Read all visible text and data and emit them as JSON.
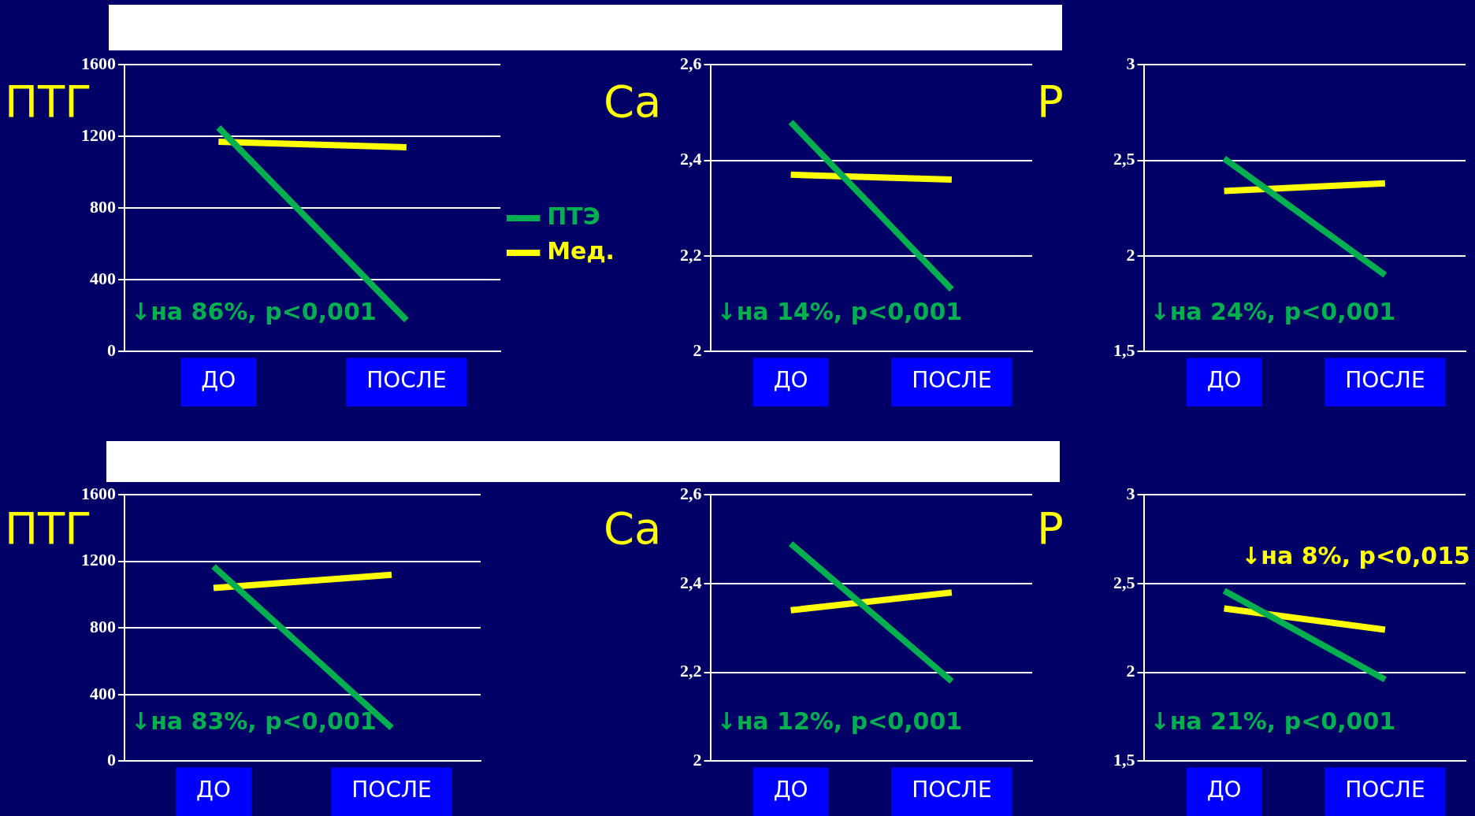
{
  "chart_data": [
    {
      "type": "line",
      "title": "ПТГ",
      "categories": [
        "ДО",
        "ПОСЛЕ"
      ],
      "series": [
        {
          "name": "ПТЭ",
          "color": "#00b050",
          "values": [
            1250,
            175
          ]
        },
        {
          "name": "Мед.",
          "color": "#ffff00",
          "values": [
            1170,
            1140
          ]
        }
      ],
      "ylim": [
        0,
        1600
      ],
      "yticks": [
        0,
        400,
        800,
        1200,
        1600
      ],
      "grid": "y",
      "legend": "right",
      "marker": "none",
      "annotations": [
        "↓на 86%, p<0,001"
      ]
    },
    {
      "type": "line",
      "title": "Ca",
      "categories": [
        "ДО",
        "ПОСЛЕ"
      ],
      "series": [
        {
          "color": "#00b050",
          "values": [
            2.48,
            2.13
          ]
        },
        {
          "color": "#ffff00",
          "values": [
            2.37,
            2.36
          ]
        }
      ],
      "ylim": [
        2,
        2.6
      ],
      "yticks": [
        2,
        {
          "value": 2.2,
          "label": "2,2"
        },
        {
          "value": 2.4,
          "label": "2,4"
        },
        {
          "value": 2.6,
          "label": "2,6"
        }
      ],
      "grid": "y",
      "marker": "none",
      "annotations": [
        "↓на 14%, p<0,001"
      ]
    },
    {
      "type": "line",
      "title": "P",
      "categories": [
        "ДО",
        "ПОСЛЕ"
      ],
      "series": [
        {
          "color": "#00b050",
          "values": [
            2.51,
            1.9
          ]
        },
        {
          "color": "#ffff00",
          "values": [
            2.34,
            2.38
          ]
        }
      ],
      "ylim": [
        1.5,
        3
      ],
      "yticks": [
        {
          "value": 1.5,
          "label": "1,5"
        },
        2,
        {
          "value": 2.5,
          "label": "2,5"
        },
        3
      ],
      "grid": "y",
      "marker": "none",
      "annotations": [
        "↓на 24%, p<0,001"
      ]
    },
    {
      "type": "line",
      "title": "ПТГ",
      "categories": [
        "ДО",
        "ПОСЛЕ"
      ],
      "series": [
        {
          "color": "#00b050",
          "values": [
            1170,
            200
          ]
        },
        {
          "color": "#ffff00",
          "values": [
            1040,
            1120
          ]
        }
      ],
      "ylim": [
        0,
        1600
      ],
      "yticks": [
        0,
        400,
        800,
        1200,
        1600
      ],
      "grid": "y",
      "marker": "none",
      "annotations": [
        "↓на 83%, p<0,001"
      ]
    },
    {
      "type": "line",
      "title": "Ca",
      "categories": [
        "ДО",
        "ПОСЛЕ"
      ],
      "series": [
        {
          "color": "#00b050",
          "values": [
            2.49,
            2.18
          ]
        },
        {
          "color": "#ffff00",
          "values": [
            2.34,
            2.38
          ]
        }
      ],
      "ylim": [
        2,
        2.6
      ],
      "yticks": [
        2,
        {
          "value": 2.2,
          "label": "2,2"
        },
        {
          "value": 2.4,
          "label": "2,4"
        },
        {
          "value": 2.6,
          "label": "2,6"
        }
      ],
      "grid": "y",
      "marker": "none",
      "annotations": [
        "↓на 12%, p<0,001"
      ]
    },
    {
      "type": "line",
      "title": "P",
      "categories": [
        "ДО",
        "ПОСЛЕ"
      ],
      "series": [
        {
          "color": "#00b050",
          "values": [
            2.46,
            1.96
          ]
        },
        {
          "color": "#ffff00",
          "values": [
            2.36,
            2.24
          ]
        }
      ],
      "ylim": [
        1.5,
        3
      ],
      "yticks": [
        {
          "value": 1.5,
          "label": "1,5"
        },
        2,
        {
          "value": 2.5,
          "label": "2,5"
        },
        3
      ],
      "grid": "y",
      "marker": "none",
      "annotations": [
        "↓на 21%, p<0,001",
        "↓на 8%, p<0,015"
      ]
    }
  ]
}
